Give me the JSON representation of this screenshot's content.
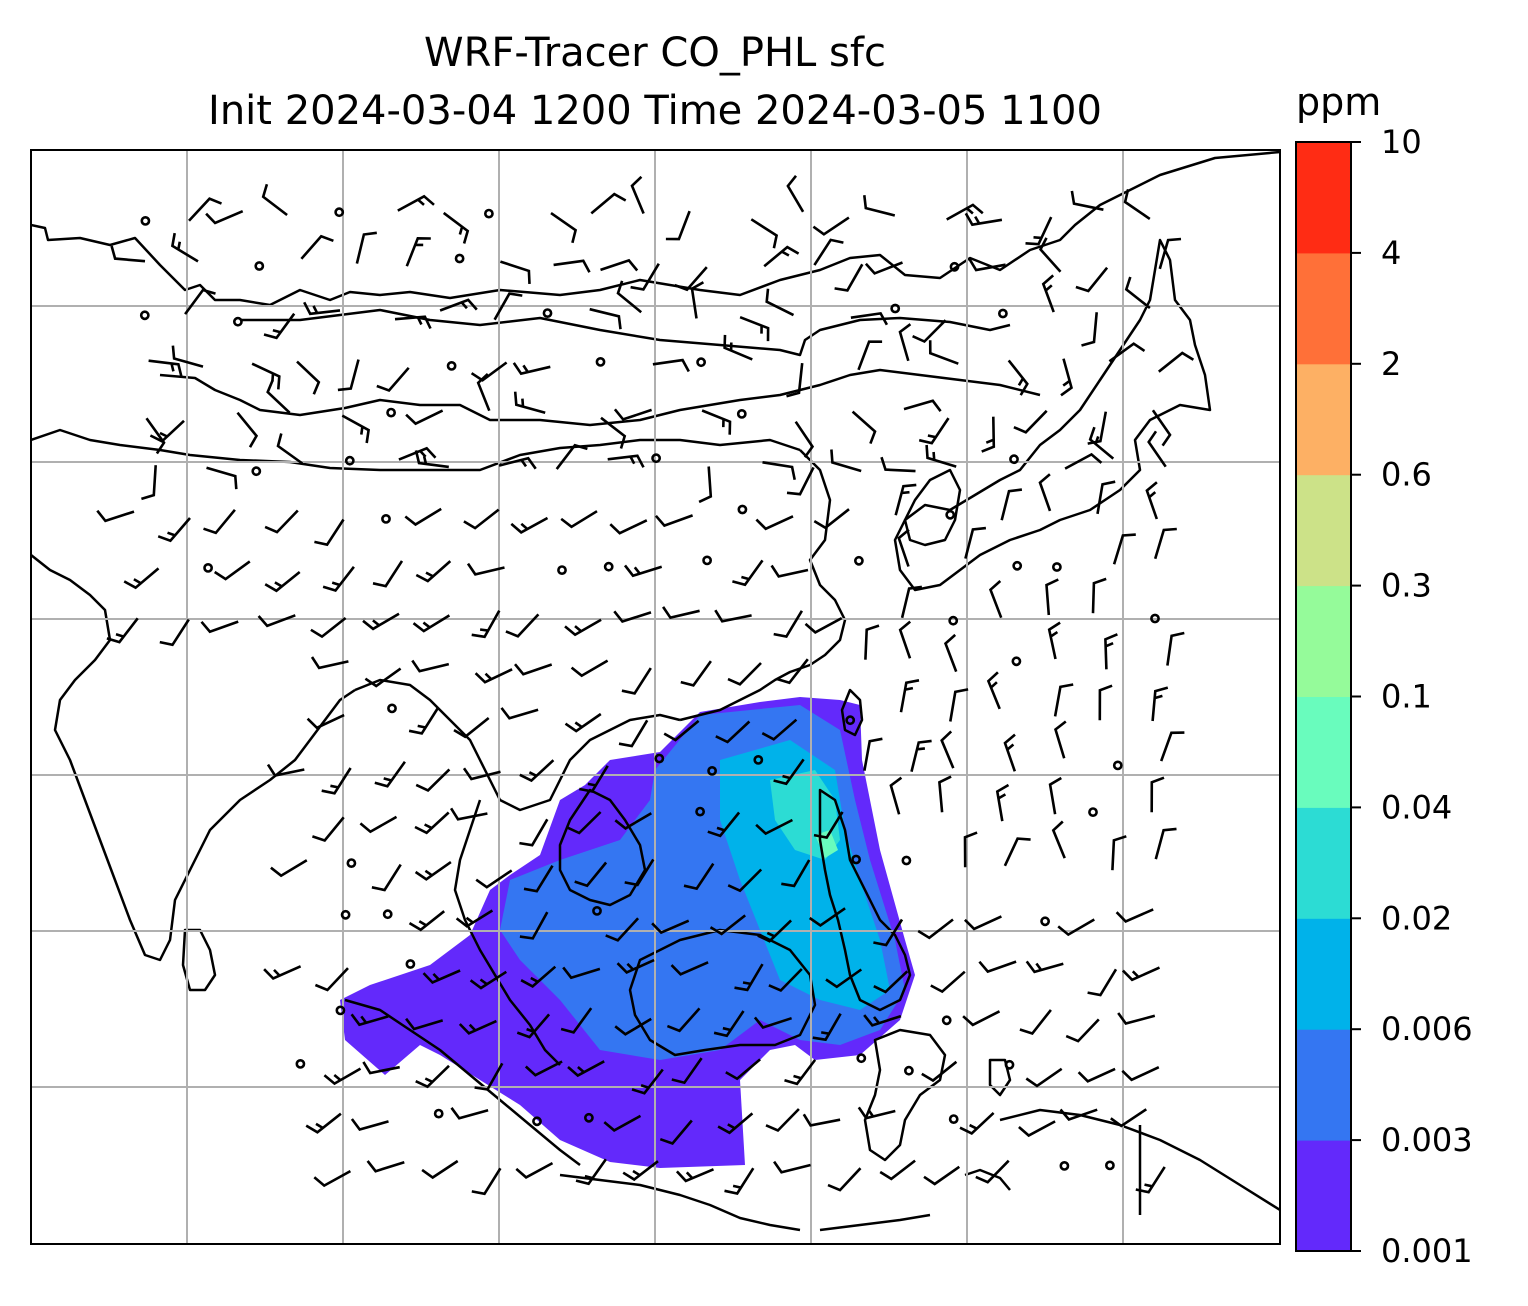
{
  "title": "WRF-Tracer CO_PHL sfc",
  "subtitle": "Init 2024-03-04 1200 Time 2024-03-05 1100",
  "colorbar": {
    "units": "ppm",
    "levels": [
      "0.001",
      "0.003",
      "0.006",
      "0.02",
      "0.04",
      "0.1",
      "0.3",
      "0.6",
      "2",
      "4",
      "10"
    ],
    "colors": [
      "#6329fb",
      "#3476f2",
      "#00b2ea",
      "#2cdcd4",
      "#69fcbd",
      "#95fb9a",
      "#cce288",
      "#fdb064",
      "#ff7038",
      "#ff2c14"
    ]
  },
  "map": {
    "gridlines": true,
    "coastline_color": "#000000",
    "grid_color": "#b0b0b0",
    "wind_barbs": true
  }
}
